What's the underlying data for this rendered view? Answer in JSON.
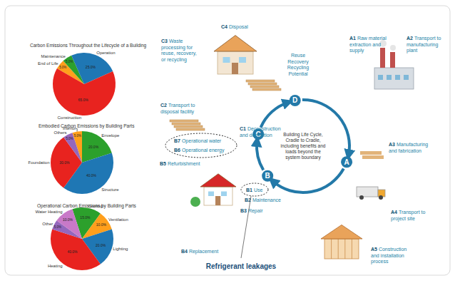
{
  "chart_data": [
    {
      "type": "pie",
      "title": "Carbon Emissions Throughout the Lifecycle of a Building",
      "categories": [
        "End of Life",
        "Maintenance",
        "Operation",
        "Construction"
      ],
      "values": [
        5,
        5,
        25,
        65
      ],
      "value_labels": [
        "5.0%",
        "5.0%",
        "25.0%",
        "65.0%"
      ],
      "colors": [
        "#ff9f1c",
        "#2ca02c",
        "#1f77b4",
        "#e8231f"
      ],
      "data_labels": true
    },
    {
      "type": "pie",
      "title": "Embodied Carbon Emissions by Building Parts",
      "categories": [
        "Interior",
        "Envelope",
        "Structure",
        "Foundation",
        "Others"
      ],
      "values": [
        5,
        20,
        40,
        30,
        5
      ],
      "value_labels": [
        "5.0%",
        "20.0%",
        "40.0%",
        "30.0%",
        "5.0%"
      ],
      "colors": [
        "#ff9f1c",
        "#2ca02c",
        "#1f77b4",
        "#e8231f",
        "#9467bd"
      ],
      "data_labels": true
    },
    {
      "type": "pie",
      "title": "Operational Carbon Emissions by Building Parts",
      "categories": [
        "Cooling",
        "Ventilation",
        "Lighting",
        "Heating",
        "Other",
        "Water Heating"
      ],
      "values": [
        15,
        10,
        20,
        40,
        5,
        10
      ],
      "value_labels": [
        "15.0%",
        "10.0%",
        "20.0%",
        "40.0%",
        "5.0%",
        "10.0%"
      ],
      "colors": [
        "#2ca02c",
        "#ff9f1c",
        "#1f77b4",
        "#e8231f",
        "#9467bd",
        "#c879c8"
      ],
      "data_labels": true
    }
  ],
  "diagram": {
    "phase_letters": [
      "A",
      "B",
      "C",
      "D"
    ],
    "center_text": [
      "Building Life Cycle,",
      "Cradle to Cradle,",
      "including benefits and",
      "loads beyond the",
      "system boundary"
    ],
    "reuse_label": [
      "Reuse",
      "Recovery",
      "Recycling",
      "Potential"
    ],
    "stages": [
      {
        "code": "A1",
        "lines": [
          "Raw material",
          "extraction and",
          "supply"
        ]
      },
      {
        "code": "A2",
        "lines": [
          "Transport to",
          "manufacturing",
          "plant"
        ]
      },
      {
        "code": "A3",
        "lines": [
          "Manufacturing",
          "and fabrication"
        ]
      },
      {
        "code": "A4",
        "lines": [
          "Transport to",
          "project site"
        ]
      },
      {
        "code": "A5",
        "lines": [
          "Construction",
          "and installation",
          "process"
        ]
      },
      {
        "code": "B1",
        "lines": [
          "Use"
        ]
      },
      {
        "code": "B2",
        "lines": [
          "Maintenance"
        ]
      },
      {
        "code": "B3",
        "lines": [
          "Repair"
        ]
      },
      {
        "code": "B4",
        "lines": [
          "Replacement"
        ]
      },
      {
        "code": "B5",
        "lines": [
          "Refurbishment"
        ]
      },
      {
        "code": "B6",
        "lines": [
          "Operational energy"
        ]
      },
      {
        "code": "B7",
        "lines": [
          "Operational water"
        ]
      },
      {
        "code": "C1",
        "lines": [
          "Deconstruction",
          "and demolition"
        ]
      },
      {
        "code": "C2",
        "lines": [
          "Transport to",
          "disposal facility"
        ]
      },
      {
        "code": "C3",
        "lines": [
          "Waste",
          "processing for",
          "reuse, recovery,",
          "or recycling"
        ]
      },
      {
        "code": "C4",
        "lines": [
          "Disposal"
        ]
      }
    ],
    "note": "Refrigerant leakages"
  }
}
